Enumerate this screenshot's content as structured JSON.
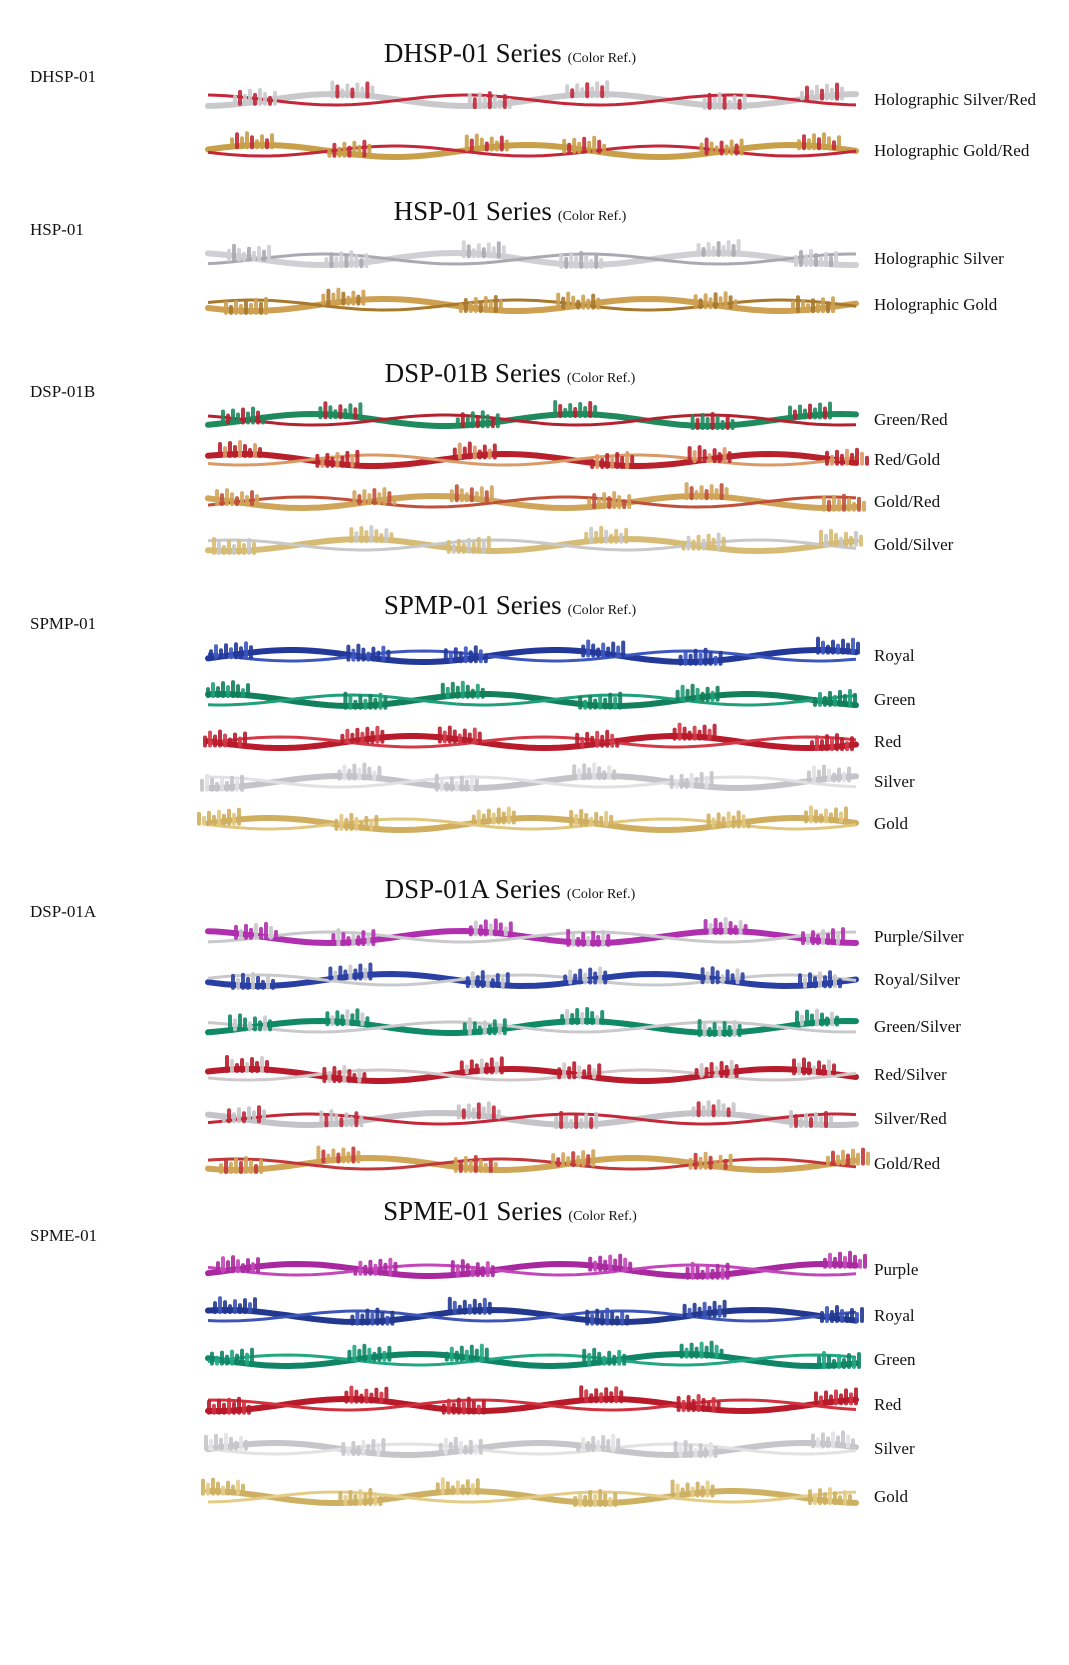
{
  "series": [
    {
      "code": "DHSP-01",
      "title": "DHSP-01 Series",
      "ref": "(Color Ref.)",
      "rows": [
        {
          "name": "Holographic Silver/Red",
          "colors": [
            "#c9c9cc",
            "#c2283a"
          ]
        },
        {
          "name": "Holographic Gold/Red",
          "colors": [
            "#c9a04a",
            "#c2283a"
          ]
        }
      ]
    },
    {
      "code": "HSP-01",
      "title": "HSP-01 Series",
      "ref": "(Color Ref.)",
      "rows": [
        {
          "name": "Holographic Silver",
          "colors": [
            "#cfcfd4",
            "#a9aab0"
          ]
        },
        {
          "name": "Holographic Gold",
          "colors": [
            "#cda052",
            "#a8782c"
          ]
        }
      ]
    },
    {
      "code": "DSP-01B",
      "title": "DSP-01B Series",
      "ref": "(Color Ref.)",
      "rows": [
        {
          "name": "Green/Red",
          "colors": [
            "#1f8a5e",
            "#b3222f"
          ]
        },
        {
          "name": "Red/Gold",
          "colors": [
            "#b8202c",
            "#d99a66"
          ]
        },
        {
          "name": "Gold/Red",
          "colors": [
            "#cfa55a",
            "#c0503a"
          ]
        },
        {
          "name": "Gold/Silver",
          "colors": [
            "#d6bb75",
            "#c8c8c8"
          ]
        }
      ]
    },
    {
      "code": "SPMP-01",
      "title": "SPMP-01 Series",
      "ref": "(Color Ref.)",
      "rows": [
        {
          "name": "Royal",
          "colors": [
            "#23399a",
            "#3d57c0"
          ]
        },
        {
          "name": "Green",
          "colors": [
            "#12805a",
            "#1fa079"
          ]
        },
        {
          "name": "Red",
          "colors": [
            "#b81c2c",
            "#d33a48"
          ]
        },
        {
          "name": "Silver",
          "colors": [
            "#c4c4c8",
            "#e1e1e4"
          ]
        },
        {
          "name": "Gold",
          "colors": [
            "#cfae60",
            "#e0c67e"
          ]
        }
      ]
    },
    {
      "code": "DSP-01A",
      "title": "DSP-01A Series",
      "ref": "(Color Ref.)",
      "rows": [
        {
          "name": "Purple/Silver",
          "colors": [
            "#b02fae",
            "#c9c9cc"
          ]
        },
        {
          "name": "Royal/Silver",
          "colors": [
            "#2a3fa3",
            "#c9c9cc"
          ]
        },
        {
          "name": "Green/Silver",
          "colors": [
            "#0f8a64",
            "#c9c9cc"
          ]
        },
        {
          "name": "Red/Silver",
          "colors": [
            "#b81c2c",
            "#d0c8c8"
          ]
        },
        {
          "name": "Silver/Red",
          "colors": [
            "#c4c4c8",
            "#c2283a"
          ]
        },
        {
          "name": "Gold/Red",
          "colors": [
            "#cfa558",
            "#c2383a"
          ]
        }
      ]
    },
    {
      "code": "SPME-01",
      "title": "SPME-01 Series",
      "ref": "(Color Ref.)",
      "rows": [
        {
          "name": "Purple",
          "colors": [
            "#a8299f",
            "#c446bb"
          ]
        },
        {
          "name": "Royal",
          "colors": [
            "#22388f",
            "#3d54b8"
          ]
        },
        {
          "name": "Green",
          "colors": [
            "#0f8566",
            "#22a783"
          ]
        },
        {
          "name": "Red",
          "colors": [
            "#b81a2a",
            "#d0313f"
          ]
        },
        {
          "name": "Silver",
          "colors": [
            "#c6c6ca",
            "#e2e2e4"
          ]
        },
        {
          "name": "Gold",
          "colors": [
            "#cdb062",
            "#e3cc87"
          ]
        }
      ]
    }
  ]
}
